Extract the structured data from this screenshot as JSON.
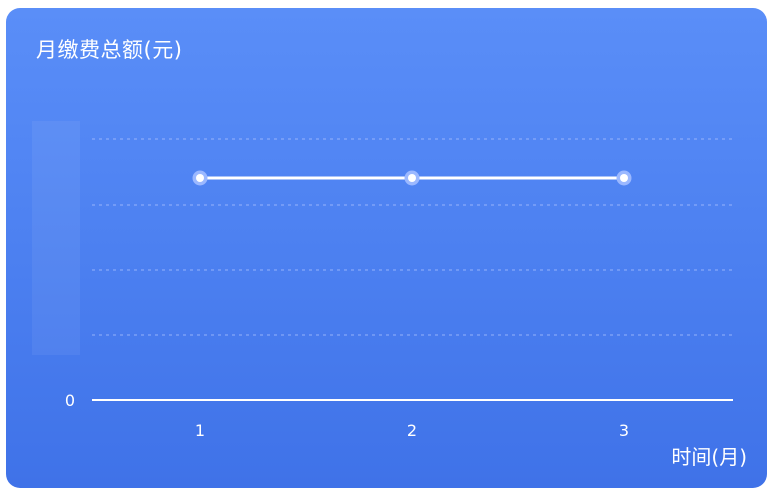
{
  "chart_data": {
    "type": "line",
    "title": "月缴费总额(元)",
    "xlabel": "时间(月)",
    "ylabel": "",
    "x": [
      1,
      2,
      3
    ],
    "series": [
      {
        "values": [
          null,
          null,
          null
        ]
      }
    ],
    "y_ticks": [
      "0"
    ],
    "x_ticks": [
      "1",
      "2",
      "3"
    ],
    "grid": true,
    "colors": {
      "line": "#ffffff",
      "point_ring": "#9bb8ff",
      "grid": "#a9c0ff"
    }
  }
}
